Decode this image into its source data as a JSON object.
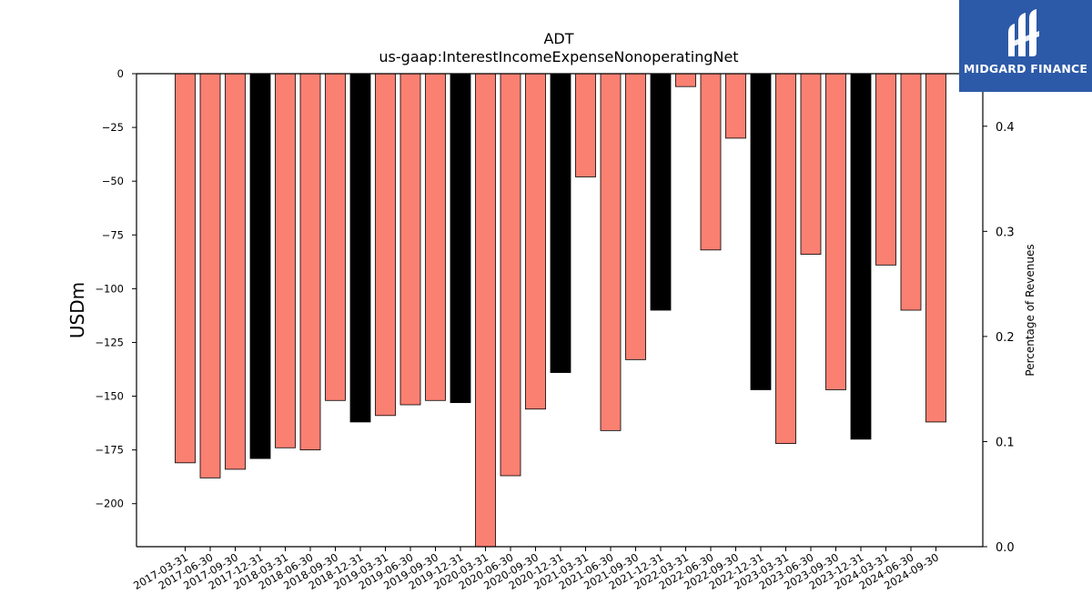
{
  "chart_data": {
    "type": "bar",
    "title": "ADT",
    "subtitle": "us-gaap:InterestIncomeExpenseNonoperatingNet",
    "ylabel": "USDm",
    "y2label": "Percentage of Revenues",
    "ylim": [
      -220,
      0
    ],
    "y2lim": [
      0.0,
      0.45
    ],
    "yticks": [
      0,
      -25,
      -50,
      -75,
      -100,
      -125,
      -150,
      -175,
      -200
    ],
    "y2ticks": [
      0.0,
      0.1,
      0.2,
      0.3,
      0.4
    ],
    "categories": [
      "2017-03-31",
      "2017-06-30",
      "2017-09-30",
      "2017-12-31",
      "2018-03-31",
      "2018-06-30",
      "2018-09-30",
      "2018-12-31",
      "2019-03-31",
      "2019-06-30",
      "2019-09-30",
      "2019-12-31",
      "2020-03-31",
      "2020-06-30",
      "2020-09-30",
      "2020-12-31",
      "2021-03-31",
      "2021-06-30",
      "2021-09-30",
      "2021-12-31",
      "2022-03-31",
      "2022-06-30",
      "2022-09-30",
      "2022-12-31",
      "2023-03-31",
      "2023-06-30",
      "2023-09-30",
      "2023-12-31",
      "2024-03-31",
      "2024-06-30",
      "2024-09-30"
    ],
    "values": [
      -181,
      -188,
      -184,
      -179,
      -174,
      -175,
      -152,
      -162,
      -159,
      -154,
      -152,
      -153,
      -220,
      -187,
      -156,
      -139,
      -48,
      -166,
      -133,
      -110,
      -6,
      -82,
      -30,
      -147,
      -172,
      -84,
      -147,
      -170,
      -89,
      -110,
      -162
    ],
    "annual": [
      false,
      false,
      false,
      true,
      false,
      false,
      false,
      true,
      false,
      false,
      false,
      true,
      false,
      false,
      false,
      true,
      false,
      false,
      false,
      true,
      false,
      false,
      false,
      true,
      false,
      false,
      false,
      true,
      false,
      false,
      false
    ],
    "colors": {
      "quarter": "#fa8072",
      "annual": "#000000"
    },
    "grid": false
  },
  "logo": {
    "text": "MIDGARD FINANCE",
    "color": "#2d5aa8"
  }
}
